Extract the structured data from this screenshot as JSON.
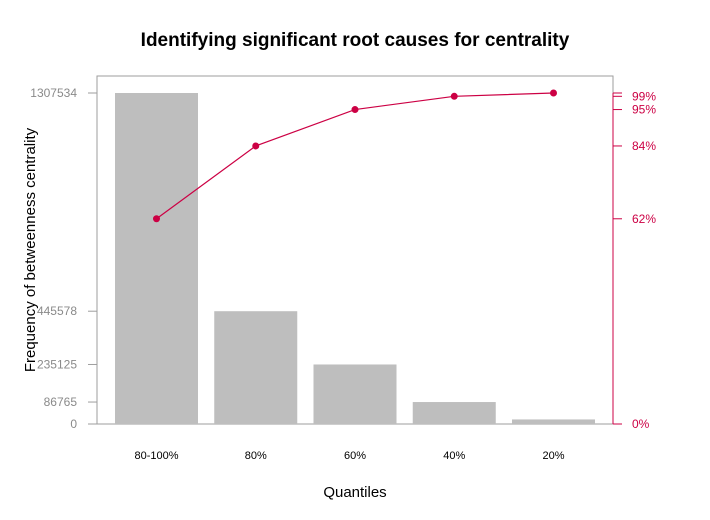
{
  "colors": {
    "bar": "#bebebe",
    "cumulative": "#cc0044",
    "frame": "#9e9e9e",
    "left_tick_text": "#8a8a8a"
  },
  "chart_data": {
    "type": "bar",
    "title": "Identifying significant root causes for centrality",
    "xlabel": "Quantiles",
    "ylabel": "Frequency of betweenness centrality",
    "categories": [
      "80-100%",
      "80%",
      "60%",
      "40%",
      "20%"
    ],
    "values": [
      1307534,
      445578,
      235125,
      86765,
      18000
    ],
    "ylim": [
      0,
      1307534
    ],
    "y_ticks": [
      {
        "value": 0,
        "label": "0"
      },
      {
        "value": 86765,
        "label": "86765"
      },
      {
        "value": 235125,
        "label": "235125"
      },
      {
        "value": 445578,
        "label": "445578"
      },
      {
        "value": 1307534,
        "label": "1307534"
      }
    ],
    "cumulative": {
      "values_pct": [
        62,
        84,
        95,
        99,
        100
      ],
      "axis_ticks": [
        {
          "value": 0,
          "label": "0%"
        },
        {
          "value": 62,
          "label": "62%"
        },
        {
          "value": 84,
          "label": "84%"
        },
        {
          "value": 95,
          "label": "95%"
        },
        {
          "value": 99,
          "label": "99%"
        },
        {
          "value": 100,
          "label": ""
        }
      ]
    },
    "grid": false,
    "legend": "none"
  }
}
